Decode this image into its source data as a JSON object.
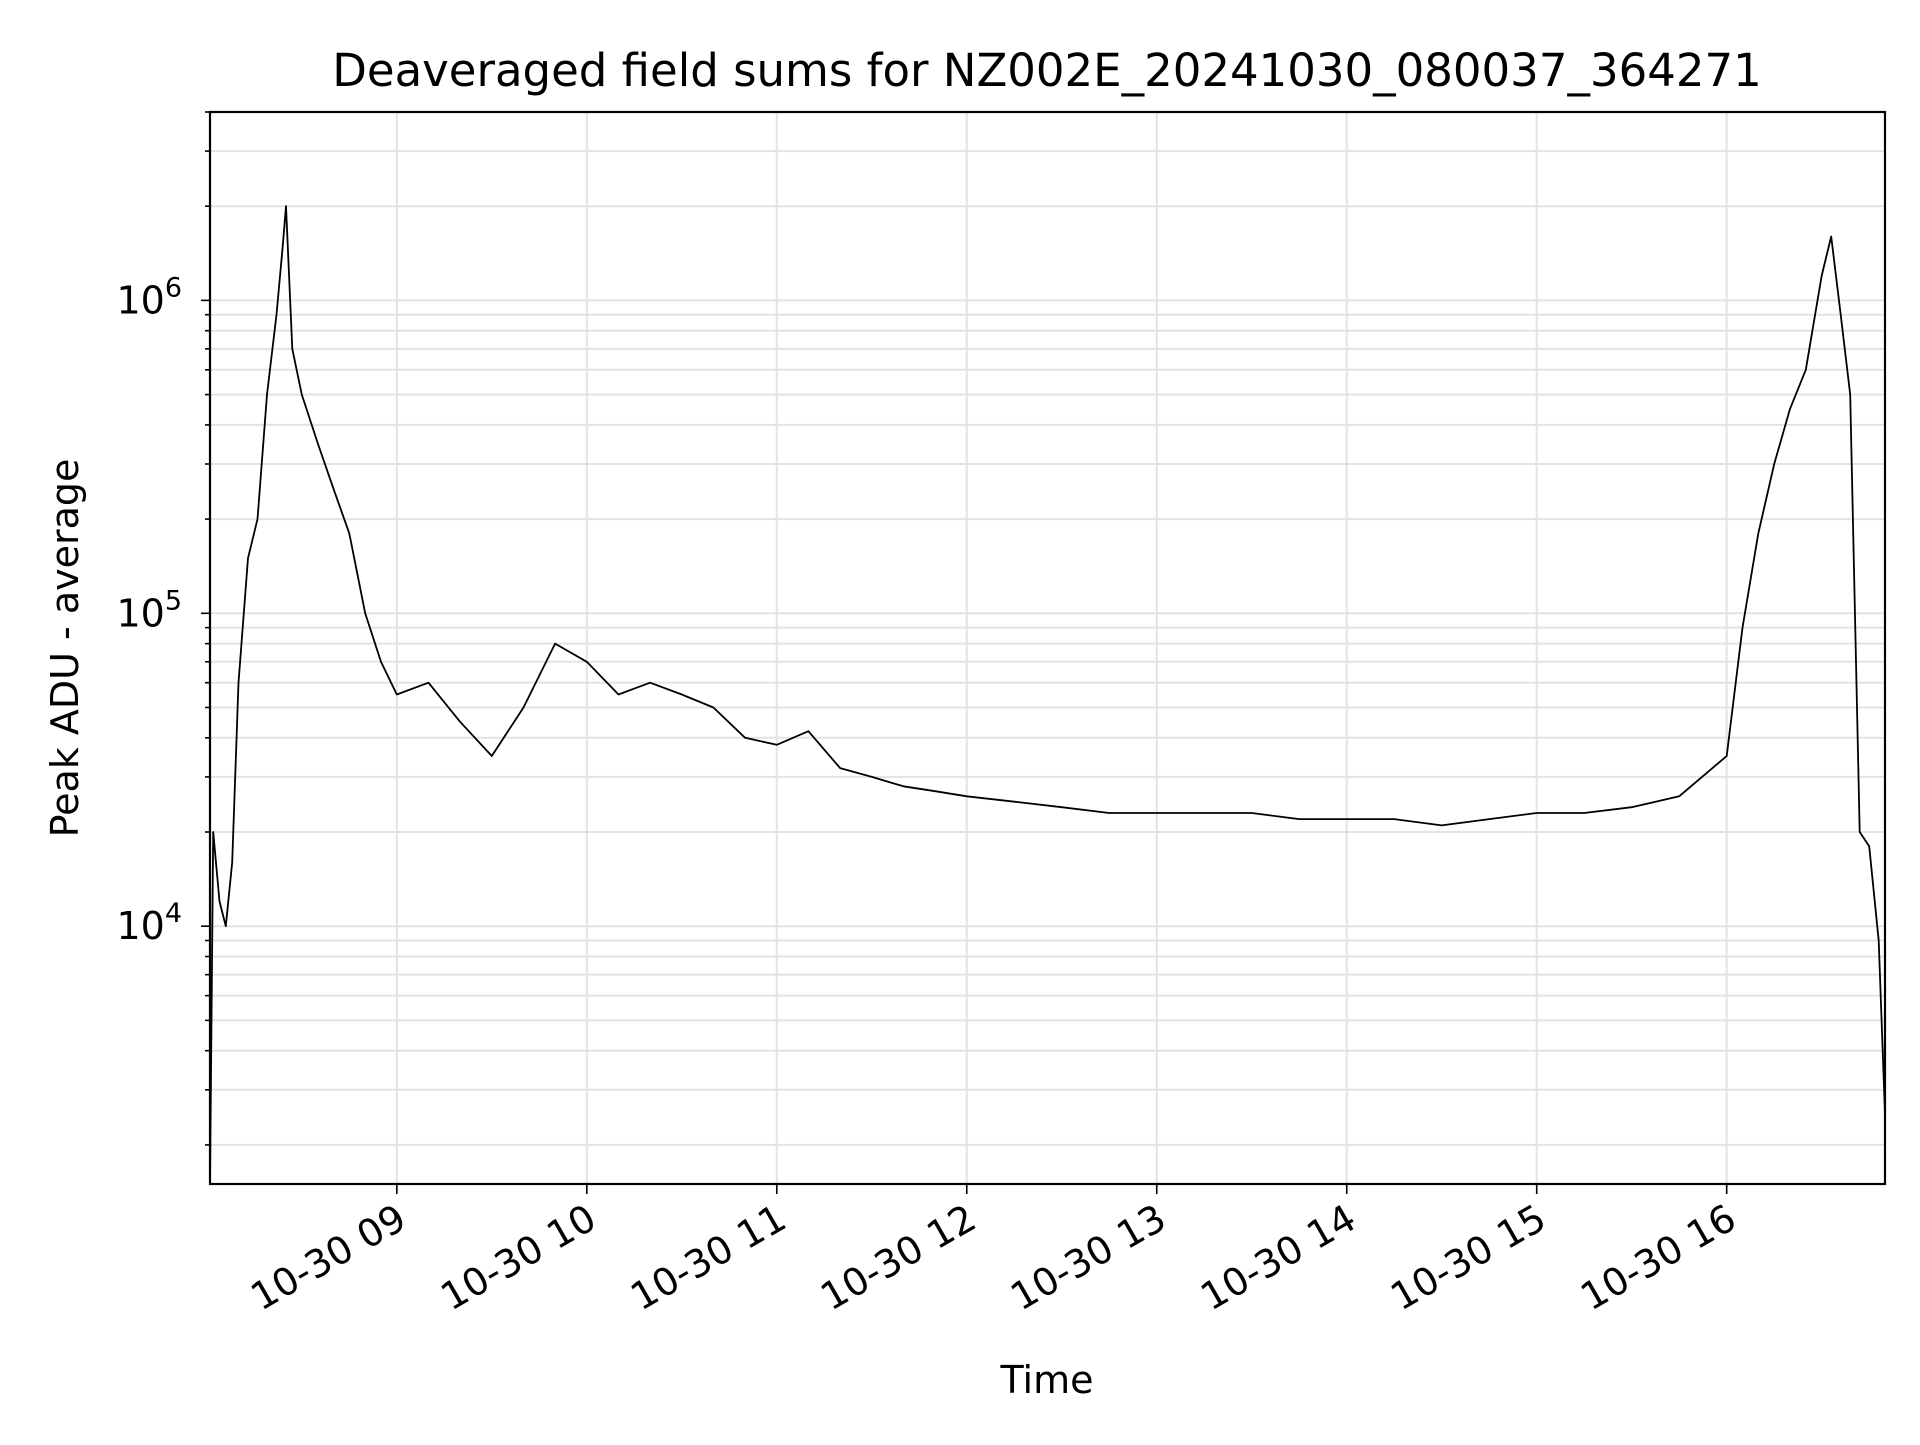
{
  "chart_data": {
    "type": "line",
    "title": "Deaveraged field sums for NZ002E_20241030_080037_364271",
    "xlabel": "Time",
    "ylabel": "Peak ADU - average",
    "yscale": "log",
    "grid": true,
    "legend": "none",
    "xlim": [
      "10-30 08:01",
      "10-30 16:50"
    ],
    "ylim": [
      1500,
      4000000
    ],
    "x_ticks": [
      "10-30 09",
      "10-30 10",
      "10-30 11",
      "10-30 12",
      "10-30 13",
      "10-30 14",
      "10-30 15",
      "10-30 16"
    ],
    "y_ticks": [
      {
        "value": 10000,
        "base": "10",
        "exp": "4"
      },
      {
        "value": 100000,
        "base": "10",
        "exp": "5"
      },
      {
        "value": 1000000,
        "base": "10",
        "exp": "6"
      }
    ],
    "series": [
      {
        "color": "#000000",
        "x": [
          "10-30 08:01",
          "10-30 08:02",
          "10-30 08:04",
          "10-30 08:06",
          "10-30 08:08",
          "10-30 08:10",
          "10-30 08:13",
          "10-30 08:16",
          "10-30 08:19",
          "10-30 08:22",
          "10-30 08:24",
          "10-30 08:25",
          "10-30 08:27",
          "10-30 08:30",
          "10-30 08:35",
          "10-30 08:40",
          "10-30 08:45",
          "10-30 08:50",
          "10-30 08:55",
          "10-30 09:00",
          "10-30 09:10",
          "10-30 09:20",
          "10-30 09:30",
          "10-30 09:40",
          "10-30 09:50",
          "10-30 10:00",
          "10-30 10:10",
          "10-30 10:20",
          "10-30 10:30",
          "10-30 10:40",
          "10-30 10:50",
          "10-30 11:00",
          "10-30 11:10",
          "10-30 11:20",
          "10-30 11:30",
          "10-30 11:40",
          "10-30 11:50",
          "10-30 12:00",
          "10-30 12:15",
          "10-30 12:30",
          "10-30 12:45",
          "10-30 13:00",
          "10-30 13:15",
          "10-30 13:30",
          "10-30 13:45",
          "10-30 14:00",
          "10-30 14:15",
          "10-30 14:30",
          "10-30 14:45",
          "10-30 15:00",
          "10-30 15:15",
          "10-30 15:30",
          "10-30 15:45",
          "10-30 16:00",
          "10-30 16:05",
          "10-30 16:10",
          "10-30 16:15",
          "10-30 16:20",
          "10-30 16:25",
          "10-30 16:30",
          "10-30 16:33",
          "10-30 16:36",
          "10-30 16:39",
          "10-30 16:42",
          "10-30 16:45",
          "10-30 16:48",
          "10-30 16:50"
        ],
        "y": [
          1500,
          20000,
          12000,
          10000,
          16000,
          60000,
          150000,
          200000,
          500000,
          900000,
          1500000,
          2000000,
          700000,
          500000,
          350000,
          250000,
          180000,
          100000,
          70000,
          55000,
          60000,
          45000,
          35000,
          50000,
          80000,
          70000,
          55000,
          60000,
          55000,
          50000,
          40000,
          38000,
          42000,
          32000,
          30000,
          28000,
          27000,
          26000,
          25000,
          24000,
          23000,
          23000,
          23000,
          23000,
          22000,
          22000,
          22000,
          21000,
          22000,
          23000,
          23000,
          24000,
          26000,
          35000,
          90000,
          180000,
          300000,
          450000,
          600000,
          1200000,
          1600000,
          900000,
          500000,
          20000,
          18000,
          9000,
          2500
        ]
      }
    ]
  }
}
